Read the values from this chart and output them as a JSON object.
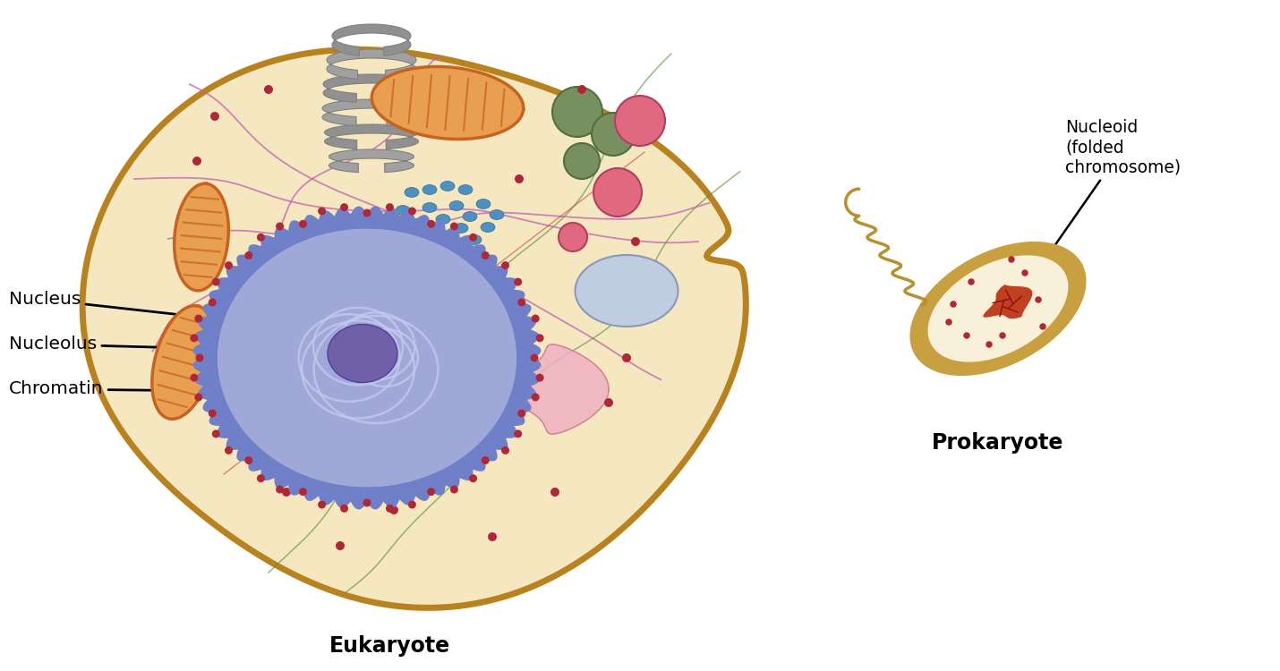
{
  "bg_color": "#ffffff",
  "eukaryote_label": "Eukaryote",
  "prokaryote_label": "Prokaryote",
  "nucleus_label": "Nucleus",
  "nucleolus_label": "Nucleolus",
  "chromatin_label": "Chromatin",
  "nucleoid_label": "Nucleoid\n(folded\nchromosome)",
  "cell_outer_color": "#b8821e",
  "cell_fill_color": "#f5e8c0",
  "nucleus_envelope_color": "#7080c8",
  "nucleus_fill_color": "#a0a8d8",
  "nucleus_inner_fill": "#9898cc",
  "nucleolus_color": "#7060a8",
  "chromatin_color": "#c8ccee",
  "mito_outer": "#c8621e",
  "mito_fill": "#e8a050",
  "mito_inner": "#d07030",
  "er_rough_color": "#9898cc",
  "er_rough_dot_color": "#c03030",
  "golgi_color": "#b0b0b0",
  "vesicle_green": "#789060",
  "vesicle_pink": "#e06880",
  "vacuole_color": "#c0cce0",
  "ribosome_blue": "#5090c0",
  "small_red": "#b02838",
  "cytoskel_purple": "#c060b0",
  "cytoskel_green": "#609040",
  "cytoskel_red": "#c04040",
  "prokaryote_outer": "#c8a040",
  "prokaryote_wall": "#d8b850",
  "prokaryote_fill": "#f8f0d8",
  "nucleoid_fill": "#c04020",
  "flagellum_color": "#b89030"
}
